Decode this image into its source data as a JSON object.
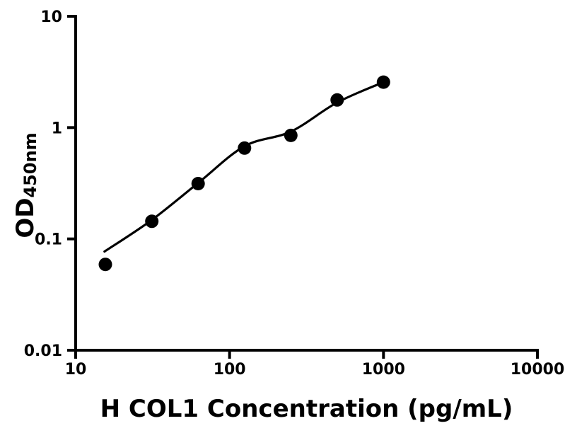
{
  "figure": {
    "background_color": "#ffffff",
    "ink_color": "#000000"
  },
  "chart_data": {
    "type": "scatter",
    "title": "",
    "xlabel": "H COL1 Concentration (pg/mL)",
    "ylabel": "OD",
    "ylabel_subscript": "450nm",
    "x_scale": "log",
    "y_scale": "log",
    "xlim": [
      10,
      10000
    ],
    "ylim": [
      0.01,
      10
    ],
    "grid": false,
    "legend": "none",
    "x_ticks": [
      {
        "label": "10",
        "value": 10
      },
      {
        "label": "100",
        "value": 100
      },
      {
        "label": "1000",
        "value": 1000
      },
      {
        "label": "10000",
        "value": 10000
      }
    ],
    "y_ticks": [
      {
        "label": "0.01",
        "value": 0.01
      },
      {
        "label": "0.1",
        "value": 0.1
      },
      {
        "label": "1",
        "value": 1
      },
      {
        "label": "10",
        "value": 10
      }
    ],
    "series": [
      {
        "name": "standard-data-points",
        "kind": "points",
        "marker": "circle",
        "color": "#000000",
        "x": [
          15.6,
          31.25,
          62.5,
          125,
          250,
          500,
          1000
        ],
        "y": [
          0.059,
          0.144,
          0.314,
          0.654,
          0.851,
          1.77,
          2.56
        ]
      },
      {
        "name": "fitted-standard-curve",
        "kind": "line",
        "color": "#000000",
        "x": [
          15.4,
          31.25,
          62.5,
          125,
          250,
          500,
          1000
        ],
        "y": [
          0.077,
          0.148,
          0.318,
          0.68,
          0.92,
          1.68,
          2.56
        ]
      }
    ]
  }
}
